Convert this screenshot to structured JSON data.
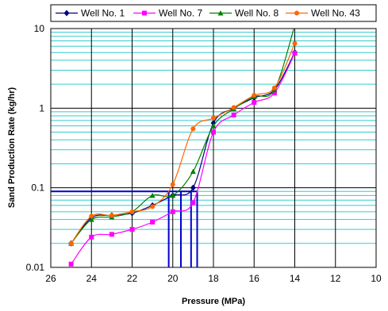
{
  "chart_data": {
    "type": "line",
    "xlabel": "Pressure (MPa)",
    "ylabel": "Sand Production Rate (kg/hr)",
    "xlim": [
      26,
      10
    ],
    "ylim": [
      0.01,
      10
    ],
    "yscale": "log",
    "x_ticks": [
      26,
      24,
      22,
      20,
      18,
      16,
      14,
      12,
      10
    ],
    "y_ticks": [
      {
        "value": 0.01,
        "label": "0.01"
      },
      {
        "value": 0.1,
        "label": "0.1"
      },
      {
        "value": 1,
        "label": "1"
      },
      {
        "value": 10,
        "label": "10"
      }
    ],
    "grid": true,
    "legend_position": "top",
    "series": [
      {
        "name": "Well No. 1",
        "color": "#00007F",
        "marker": "diamond",
        "x": [
          25,
          24,
          23,
          22,
          21,
          20,
          19,
          18,
          17,
          16,
          15,
          14
        ],
        "y": [
          0.02,
          0.042,
          0.045,
          0.048,
          0.06,
          0.08,
          0.1,
          0.65,
          1.0,
          1.35,
          1.7,
          5.0
        ]
      },
      {
        "name": "Well No. 7",
        "color": "#FF00FF",
        "marker": "square",
        "x": [
          25,
          24,
          23,
          22,
          21,
          20,
          19,
          18,
          17,
          16,
          15,
          14
        ],
        "y": [
          0.011,
          0.024,
          0.026,
          0.03,
          0.037,
          0.05,
          0.065,
          0.5,
          0.82,
          1.18,
          1.55,
          4.9
        ]
      },
      {
        "name": "Well No. 8",
        "color": "#008000",
        "marker": "triangle",
        "x": [
          25,
          24,
          23,
          22,
          21,
          20,
          19,
          18,
          17,
          16,
          15,
          14
        ],
        "y": [
          0.02,
          0.04,
          0.043,
          0.05,
          0.08,
          0.08,
          0.16,
          0.6,
          0.98,
          1.4,
          1.7,
          11.0
        ]
      },
      {
        "name": "Well No. 43",
        "color": "#FF6600",
        "marker": "circle",
        "x": [
          25,
          24,
          23,
          22,
          21,
          20,
          19,
          18,
          17,
          16,
          15,
          14
        ],
        "y": [
          0.02,
          0.044,
          0.045,
          0.05,
          0.058,
          0.11,
          0.55,
          0.75,
          1.02,
          1.45,
          1.8,
          6.5
        ]
      }
    ],
    "reference_lines": {
      "color": "#0000CC",
      "y_level": 0.09,
      "x_values": [
        20.2,
        19.6,
        19.1,
        18.8
      ]
    }
  }
}
